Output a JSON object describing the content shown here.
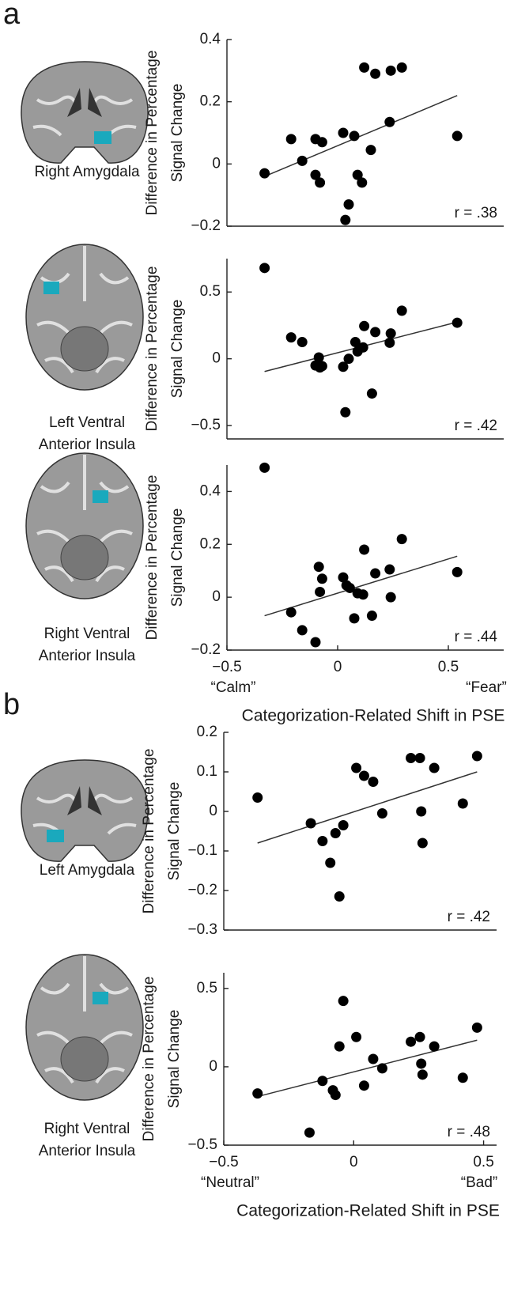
{
  "chart_data": [
    {
      "type": "scatter",
      "panel": "a",
      "region": [
        "Right Amygdala"
      ],
      "brain": "coronal",
      "blob": "right",
      "ylabel": [
        "Difference in Percentage",
        "Signal Change"
      ],
      "xlim": [
        -0.5,
        0.75
      ],
      "ylim": [
        -0.2,
        0.4
      ],
      "yticks": [
        {
          "value": -0.2,
          "label": "−0.2"
        },
        0,
        0.2,
        0.4
      ],
      "x": [
        -0.33,
        -0.21,
        -0.16,
        -0.1,
        -0.07,
        -0.1,
        -0.08,
        0.025,
        0.075,
        0.05,
        0.035,
        0.09,
        0.11,
        0.15,
        0.12,
        0.17,
        0.235,
        0.24,
        0.29,
        0.54
      ],
      "values": [
        -0.03,
        0.08,
        0.01,
        0.08,
        0.07,
        -0.035,
        -0.06,
        0.1,
        0.09,
        -0.13,
        -0.18,
        -0.035,
        -0.06,
        0.045,
        0.31,
        0.29,
        0.135,
        0.3,
        0.31,
        0.09
      ],
      "fit": {
        "x": [
          -0.33,
          0.54
        ],
        "y": [
          -0.04,
          0.22
        ]
      },
      "annotation": "r = .38"
    },
    {
      "type": "scatter",
      "region": [
        "Left Ventral",
        "Anterior Insula"
      ],
      "brain": "axial",
      "blob": "left",
      "ylabel": [
        "Difference in Percentage",
        "Signal Change"
      ],
      "xlim": [
        -0.5,
        0.75
      ],
      "ylim": [
        -0.6,
        0.75
      ],
      "yticks": [
        {
          "value": -0.5,
          "label": "−0.5"
        },
        0,
        0.5
      ],
      "x": [
        -0.33,
        -0.21,
        -0.16,
        -0.085,
        -0.1,
        -0.08,
        -0.07,
        0.025,
        0.05,
        0.08,
        0.09,
        0.115,
        0.12,
        0.17,
        0.155,
        0.035,
        0.235,
        0.24,
        0.29,
        0.54
      ],
      "values": [
        0.68,
        0.16,
        0.125,
        0.01,
        -0.05,
        -0.065,
        -0.055,
        -0.06,
        0,
        0.125,
        0.055,
        0.085,
        0.245,
        0.2,
        -0.26,
        -0.4,
        0.12,
        0.19,
        0.36,
        0.27
      ],
      "fit": {
        "x": [
          -0.33,
          0.54
        ],
        "y": [
          -0.095,
          0.275
        ]
      },
      "annotation": "r = .42"
    },
    {
      "type": "scatter",
      "region": [
        "Right Ventral",
        "Anterior Insula"
      ],
      "brain": "axial",
      "blob": "right",
      "ylabel": [
        "Difference in Percentage",
        "Signal Change"
      ],
      "xlim": [
        -0.5,
        0.75
      ],
      "ylim": [
        -0.2,
        0.5
      ],
      "xticks": [
        {
          "value": -0.5,
          "label": "−0.5"
        },
        0,
        0.5
      ],
      "yticks": [
        {
          "value": -0.2,
          "label": "−0.2"
        },
        0,
        0.2,
        0.4
      ],
      "x": [
        -0.33,
        -0.21,
        -0.16,
        -0.1,
        -0.085,
        -0.07,
        -0.08,
        0.025,
        0.04,
        0.055,
        0.075,
        0.09,
        0.115,
        0.12,
        0.155,
        0.17,
        0.235,
        0.24,
        0.29,
        0.54
      ],
      "values": [
        0.49,
        -0.057,
        -0.125,
        -0.17,
        0.115,
        0.07,
        0.02,
        0.075,
        0.045,
        0.035,
        -0.08,
        0.015,
        0.01,
        0.18,
        -0.07,
        0.09,
        0.105,
        0,
        0.22,
        0.095
      ],
      "fit": {
        "x": [
          -0.33,
          0.54
        ],
        "y": [
          -0.07,
          0.155
        ]
      },
      "annotation": "r = .44",
      "x_annotations": [
        "“Calm”",
        "“Fear”"
      ],
      "xlabel": "Categorization-Related Shift in PSE"
    },
    {
      "type": "scatter",
      "panel": "b",
      "region": [
        "Left Amygdala"
      ],
      "brain": "coronal",
      "blob": "left",
      "ylabel": [
        "Difference in Percentage",
        "Signal Change"
      ],
      "xlim": [
        -0.5,
        0.55
      ],
      "ylim": [
        -0.3,
        0.2
      ],
      "yticks": [
        {
          "value": -0.3,
          "label": "−0.3"
        },
        {
          "value": -0.2,
          "label": "−0.2"
        },
        {
          "value": -0.1,
          "label": "−0.1"
        },
        0,
        0.1,
        0.2
      ],
      "x": [
        -0.37,
        -0.165,
        -0.12,
        -0.07,
        -0.09,
        -0.04,
        -0.055,
        0.01,
        0.04,
        0.075,
        0.11,
        0.22,
        0.255,
        0.26,
        0.265,
        0.31,
        0.42,
        0.475
      ],
      "values": [
        0.035,
        -0.03,
        -0.075,
        -0.055,
        -0.13,
        -0.035,
        -0.215,
        0.11,
        0.09,
        0.075,
        -0.005,
        0.135,
        0.135,
        0,
        -0.08,
        0.11,
        0.02,
        0.14
      ],
      "fit": {
        "x": [
          -0.37,
          0.475
        ],
        "y": [
          -0.08,
          0.1
        ]
      },
      "annotation": "r = .42"
    },
    {
      "type": "scatter",
      "region": [
        "Right Ventral",
        "Anterior Insula"
      ],
      "brain": "axial",
      "blob": "right",
      "ylabel": [
        "Difference in Percentage",
        "Signal Change"
      ],
      "xlim": [
        -0.5,
        0.55
      ],
      "ylim": [
        -0.5,
        0.6
      ],
      "xticks": [
        {
          "value": -0.5,
          "label": "−0.5"
        },
        0,
        0.5
      ],
      "yticks": [
        {
          "value": -0.5,
          "label": "−0.5"
        },
        0,
        0.5
      ],
      "x": [
        -0.37,
        -0.17,
        -0.12,
        -0.08,
        -0.07,
        -0.055,
        -0.04,
        0.01,
        0.04,
        0.075,
        0.11,
        0.22,
        0.255,
        0.26,
        0.265,
        0.31,
        0.42,
        0.475
      ],
      "values": [
        -0.17,
        -0.42,
        -0.09,
        -0.15,
        -0.18,
        0.13,
        0.42,
        0.19,
        -0.12,
        0.05,
        -0.01,
        0.16,
        0.19,
        0.02,
        -0.05,
        0.13,
        -0.07,
        0.25
      ],
      "fit": {
        "x": [
          -0.37,
          0.475
        ],
        "y": [
          -0.19,
          0.17
        ]
      },
      "annotation": "r = .48",
      "x_annotations": [
        "“Neutral”",
        "“Bad”"
      ],
      "xlabel": "Categorization-Related Shift in PSE"
    }
  ]
}
